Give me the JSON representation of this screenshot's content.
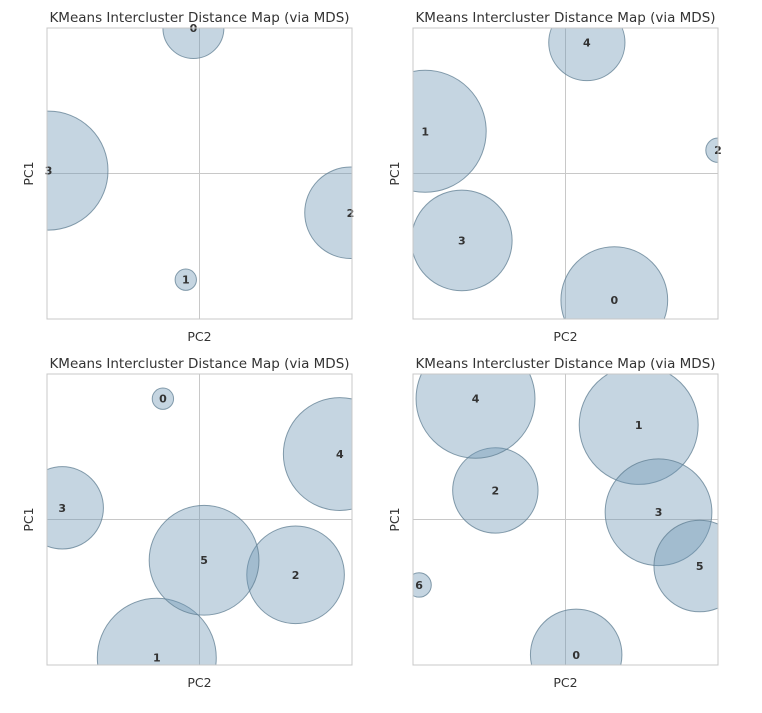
{
  "chart_data": [
    {
      "type": "scatter",
      "title": "KMeans Intercluster Distance Map (via MDS)",
      "xlabel": "PC2",
      "ylabel": "PC1",
      "xlim": [
        -1,
        1
      ],
      "ylim": [
        -1,
        1
      ],
      "grid": false,
      "origin_lines": true,
      "clusters": [
        {
          "label": "0",
          "x": -0.04,
          "y": 1.0,
          "size": 0.2
        },
        {
          "label": "1",
          "x": -0.09,
          "y": -0.73,
          "size": 0.07
        },
        {
          "label": "2",
          "x": 0.99,
          "y": -0.27,
          "size": 0.3
        },
        {
          "label": "3",
          "x": -0.99,
          "y": 0.02,
          "size": 0.39
        }
      ]
    },
    {
      "type": "scatter",
      "title": "KMeans Intercluster Distance Map (via MDS)",
      "xlabel": "PC2",
      "ylabel": "PC1",
      "xlim": [
        -1,
        1
      ],
      "ylim": [
        -1,
        1
      ],
      "grid": false,
      "origin_lines": true,
      "clusters": [
        {
          "label": "0",
          "x": 0.32,
          "y": -0.87,
          "size": 0.35
        },
        {
          "label": "1",
          "x": -0.92,
          "y": 0.29,
          "size": 0.4
        },
        {
          "label": "2",
          "x": 1.0,
          "y": 0.16,
          "size": 0.08
        },
        {
          "label": "3",
          "x": -0.68,
          "y": -0.46,
          "size": 0.33
        },
        {
          "label": "4",
          "x": 0.14,
          "y": 0.9,
          "size": 0.25
        }
      ]
    },
    {
      "type": "scatter",
      "title": "KMeans Intercluster Distance Map (via MDS)",
      "xlabel": "PC2",
      "ylabel": "PC1",
      "xlim": [
        -1,
        1
      ],
      "ylim": [
        -1,
        1
      ],
      "grid": false,
      "origin_lines": true,
      "clusters": [
        {
          "label": "0",
          "x": -0.24,
          "y": 0.83,
          "size": 0.07
        },
        {
          "label": "1",
          "x": -0.28,
          "y": -0.95,
          "size": 0.39
        },
        {
          "label": "2",
          "x": 0.63,
          "y": -0.38,
          "size": 0.32
        },
        {
          "label": "3",
          "x": -0.9,
          "y": 0.08,
          "size": 0.27
        },
        {
          "label": "4",
          "x": 0.92,
          "y": 0.45,
          "size": 0.37
        },
        {
          "label": "5",
          "x": 0.03,
          "y": -0.28,
          "size": 0.36
        }
      ]
    },
    {
      "type": "scatter",
      "title": "KMeans Intercluster Distance Map (via MDS)",
      "xlabel": "PC2",
      "ylabel": "PC1",
      "xlim": [
        -1,
        1
      ],
      "ylim": [
        -1,
        1
      ],
      "grid": false,
      "origin_lines": true,
      "clusters": [
        {
          "label": "0",
          "x": 0.07,
          "y": -0.93,
          "size": 0.3
        },
        {
          "label": "1",
          "x": 0.48,
          "y": 0.65,
          "size": 0.39
        },
        {
          "label": "2",
          "x": -0.46,
          "y": 0.2,
          "size": 0.28
        },
        {
          "label": "3",
          "x": 0.61,
          "y": 0.05,
          "size": 0.35
        },
        {
          "label": "4",
          "x": -0.59,
          "y": 0.83,
          "size": 0.39
        },
        {
          "label": "5",
          "x": 0.88,
          "y": -0.32,
          "size": 0.3
        },
        {
          "label": "6",
          "x": -0.96,
          "y": -0.45,
          "size": 0.08
        }
      ]
    }
  ]
}
